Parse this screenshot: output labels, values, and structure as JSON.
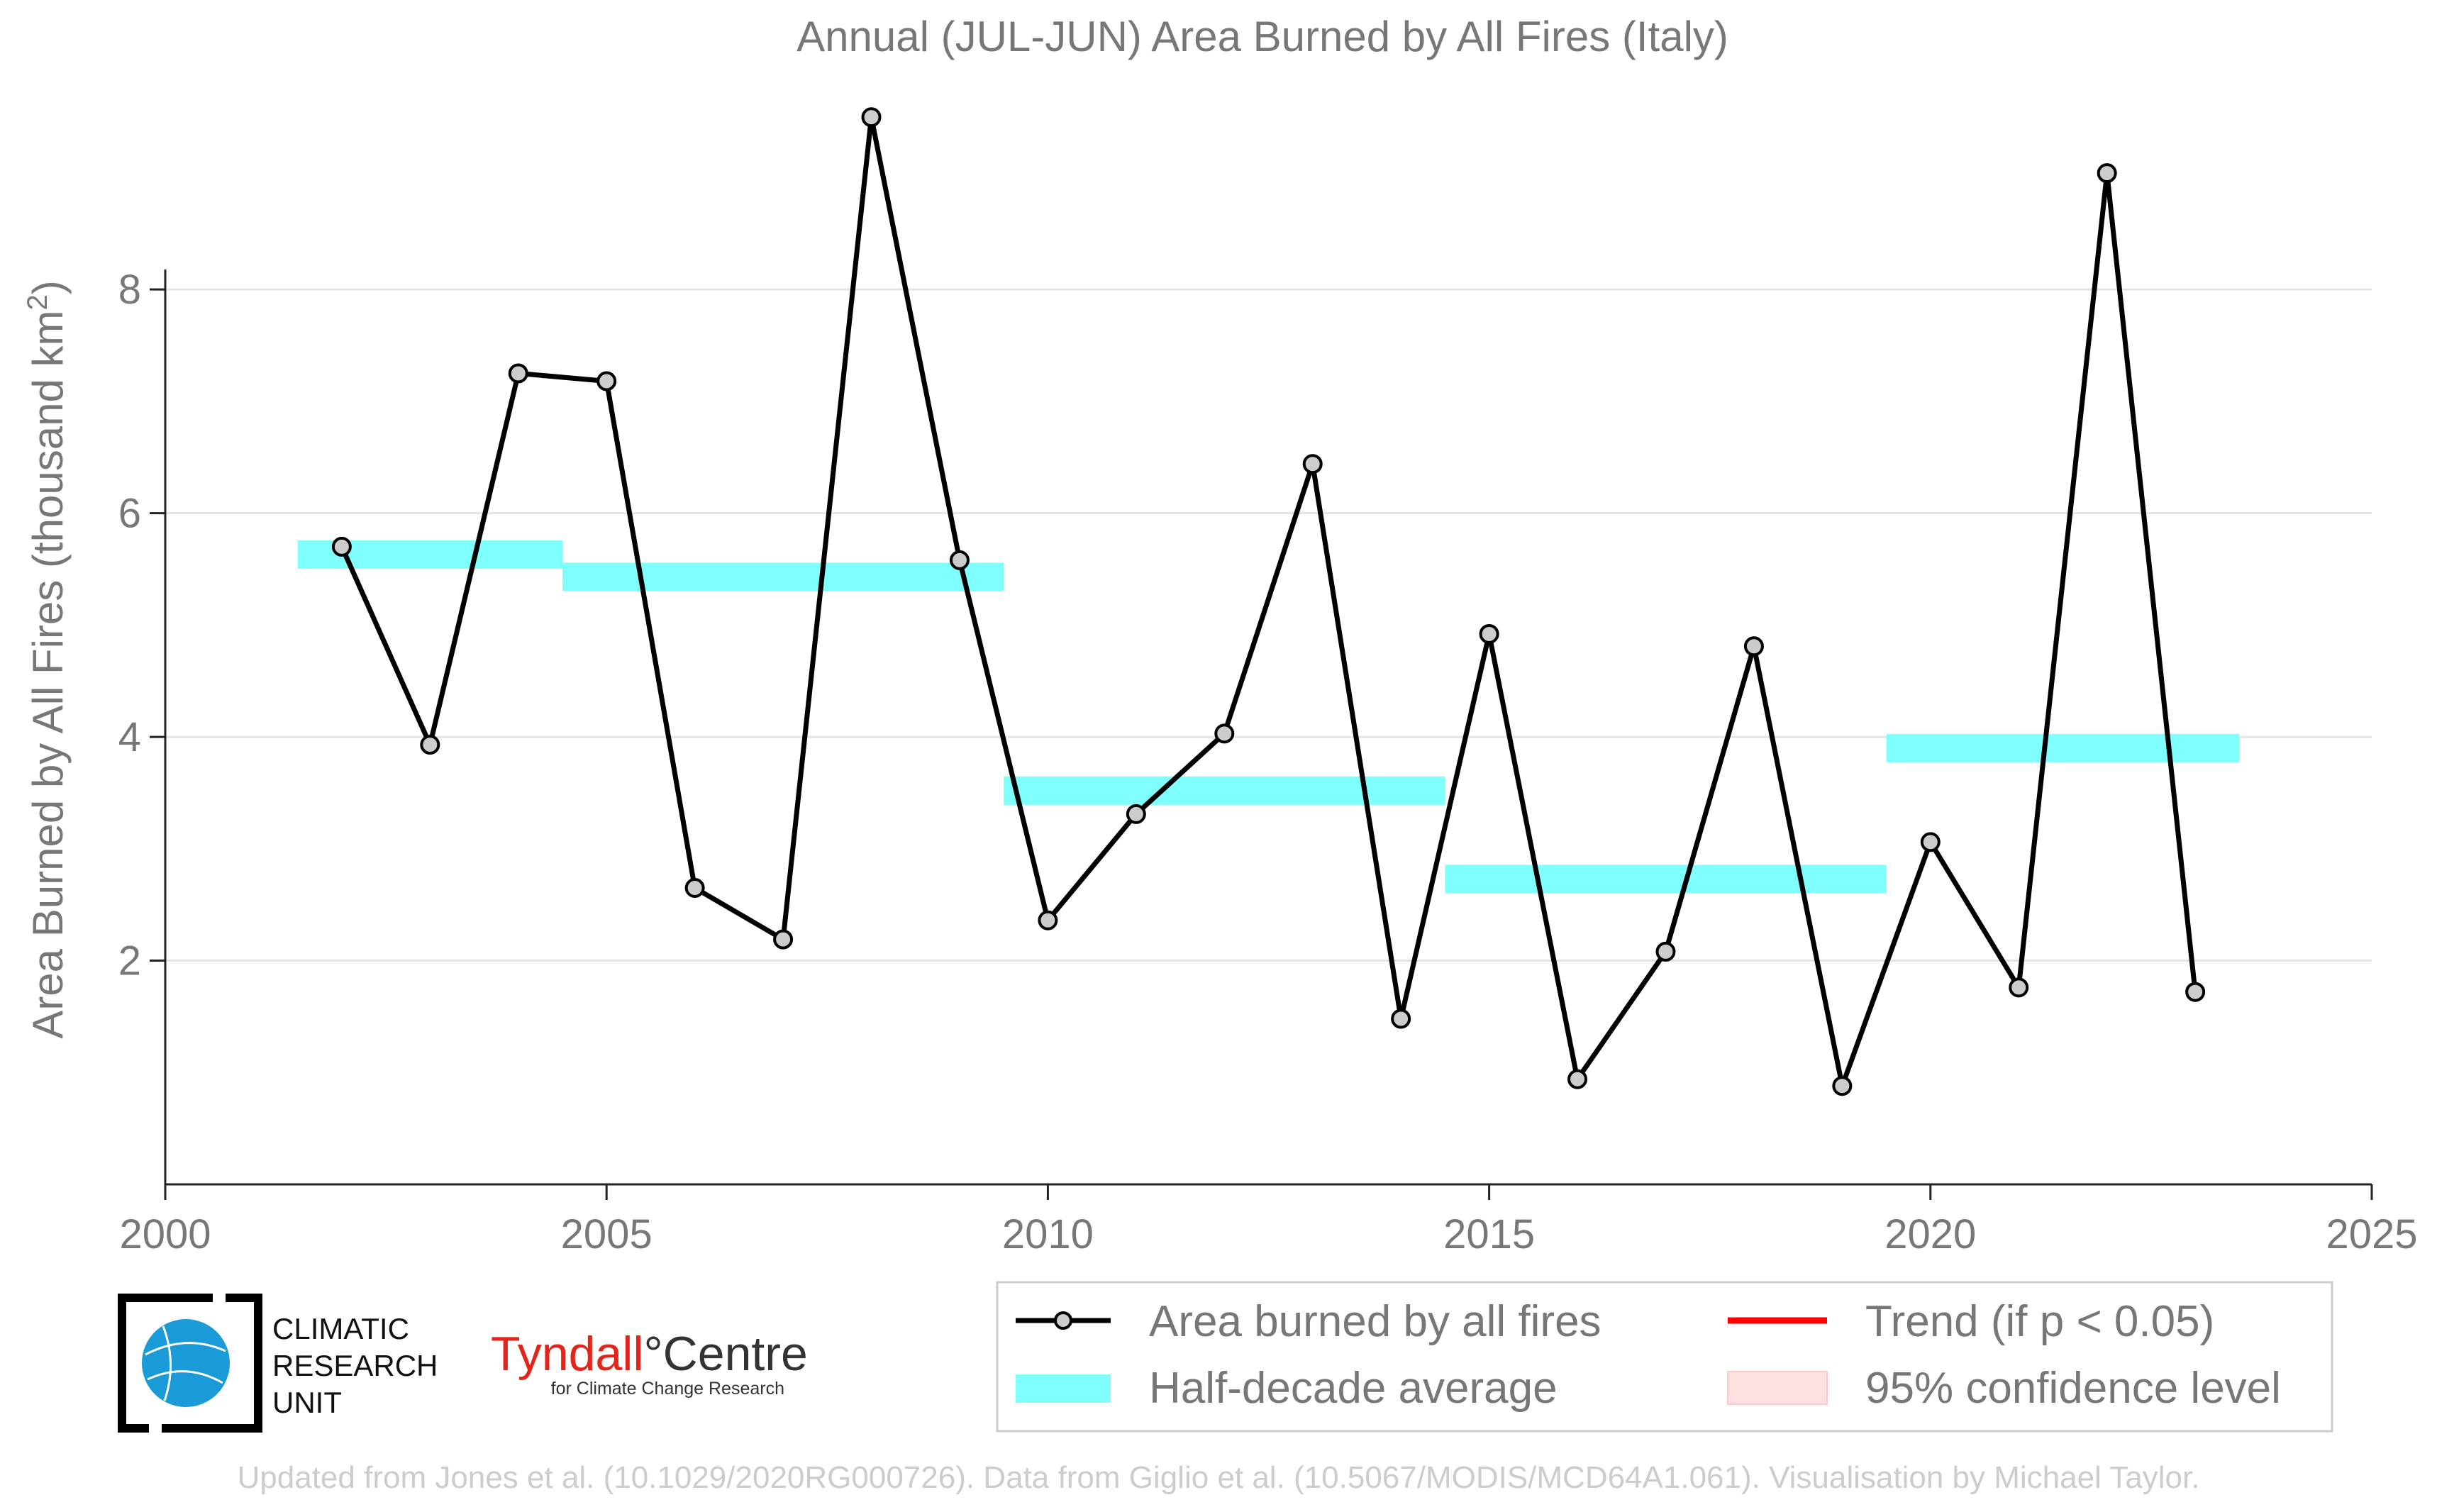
{
  "chart_data": {
    "type": "line",
    "title": "Annual (JUL-JUN) Area Burned by All Fires (Italy)",
    "ylabel_main": "Area Burned by All Fires (thousand km",
    "ylabel_sup": "2",
    "ylabel_close": ")",
    "xlim": [
      2000,
      2025
    ],
    "ylim": [
      0,
      9.7
    ],
    "xticks": [
      2000,
      2005,
      2010,
      2015,
      2020,
      2025
    ],
    "yticks": [
      2,
      4,
      6,
      8
    ],
    "grid": true,
    "series": [
      {
        "name": "Area burned by all fires",
        "color": "#000000",
        "marker_color": "#cccccc",
        "x": [
          2002,
          2003,
          2004,
          2005,
          2006,
          2007,
          2008,
          2009,
          2010,
          2011,
          2012,
          2013,
          2014,
          2015,
          2016,
          2017,
          2018,
          2019,
          2020,
          2021,
          2022,
          2023
        ],
        "y": [
          5.7,
          3.93,
          7.25,
          7.18,
          2.65,
          2.19,
          9.54,
          5.58,
          2.36,
          3.31,
          4.03,
          6.44,
          1.48,
          4.92,
          0.94,
          2.08,
          4.81,
          0.88,
          3.06,
          1.76,
          9.04,
          1.72
        ]
      }
    ],
    "half_decade_average": {
      "name": "Half-decade average",
      "color": "#80ffff",
      "segments": [
        {
          "x0": 2001.5,
          "x1": 2004.5,
          "y": 5.63
        },
        {
          "x0": 2004.5,
          "x1": 2009.5,
          "y": 5.43
        },
        {
          "x0": 2009.5,
          "x1": 2014.5,
          "y": 3.52
        },
        {
          "x0": 2014.5,
          "x1": 2019.5,
          "y": 2.73
        },
        {
          "x0": 2019.5,
          "x1": 2023.5,
          "y": 3.9
        }
      ]
    },
    "legend": [
      {
        "label": "Area burned by all fires",
        "kind": "line-marker",
        "color": "#000000"
      },
      {
        "label": "Trend (if p < 0.05)",
        "kind": "line",
        "color": "#ff0000"
      },
      {
        "label": "Half-decade average",
        "kind": "patch",
        "color": "#80ffff"
      },
      {
        "label": "95% confidence level",
        "kind": "patch",
        "color": "#ffe0e0"
      }
    ],
    "legend_position": "bottom-right"
  },
  "logos": {
    "cru_lines": [
      "CLIMATIC",
      "RESEARCH",
      "UNIT"
    ],
    "tyndall_name": "Tyndall",
    "tyndall_deg": "°",
    "tyndall_centre": "Centre",
    "tyndall_sub": "for Climate Change Research"
  },
  "credit": "Updated from Jones et al. (10.1029/2020RG000726). Data from Giglio et al. (10.5067/MODIS/MCD64A1.061). Visualisation by Michael Taylor."
}
